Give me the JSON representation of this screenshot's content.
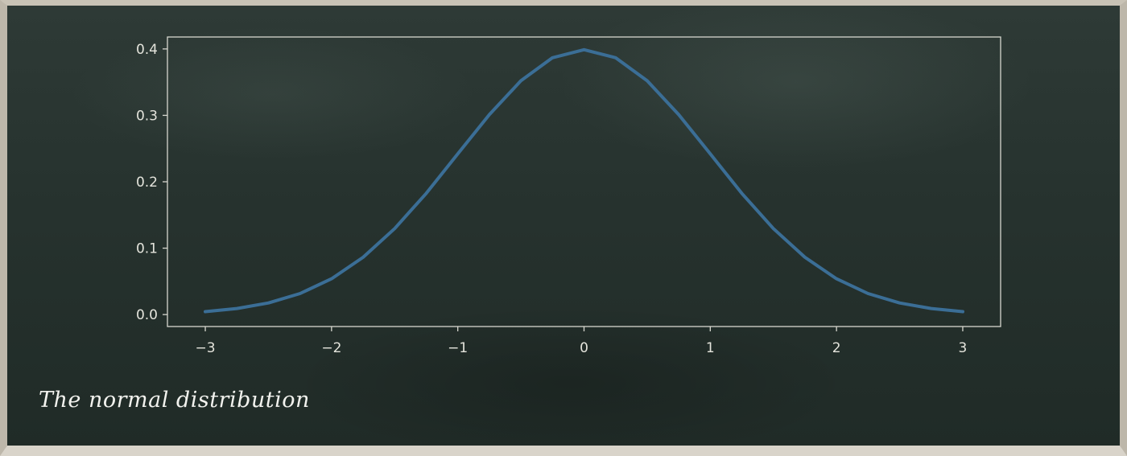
{
  "caption": "The normal distribution",
  "chart_data": {
    "type": "line",
    "title": "",
    "xlabel": "",
    "ylabel": "",
    "xlim": [
      -3.3,
      3.3
    ],
    "ylim": [
      -0.018,
      0.418
    ],
    "x_ticks": [
      -3,
      -2,
      -1,
      0,
      1,
      2,
      3
    ],
    "x_tick_labels": [
      "−3",
      "−2",
      "−1",
      "0",
      "1",
      "2",
      "3"
    ],
    "y_ticks": [
      0.0,
      0.1,
      0.2,
      0.3,
      0.4
    ],
    "y_tick_labels": [
      "0.0",
      "0.1",
      "0.2",
      "0.3",
      "0.4"
    ],
    "grid": false,
    "series": [
      {
        "color": "#3b6e96",
        "x": [
          -3.0,
          -2.75,
          -2.5,
          -2.25,
          -2.0,
          -1.75,
          -1.5,
          -1.25,
          -1.0,
          -0.75,
          -0.5,
          -0.25,
          0.0,
          0.25,
          0.5,
          0.75,
          1.0,
          1.25,
          1.5,
          1.75,
          2.0,
          2.25,
          2.5,
          2.75,
          3.0
        ],
        "y": [
          0.0044,
          0.0091,
          0.0175,
          0.0317,
          0.054,
          0.0863,
          0.1295,
          0.1826,
          0.242,
          0.3011,
          0.3521,
          0.3867,
          0.3989,
          0.3867,
          0.3521,
          0.3011,
          0.242,
          0.1826,
          0.1295,
          0.0863,
          0.054,
          0.0317,
          0.0175,
          0.0091,
          0.0044
        ]
      }
    ],
    "colors": {
      "axis": "#d7d7cf",
      "tick_text": "#e4e4dc"
    }
  }
}
